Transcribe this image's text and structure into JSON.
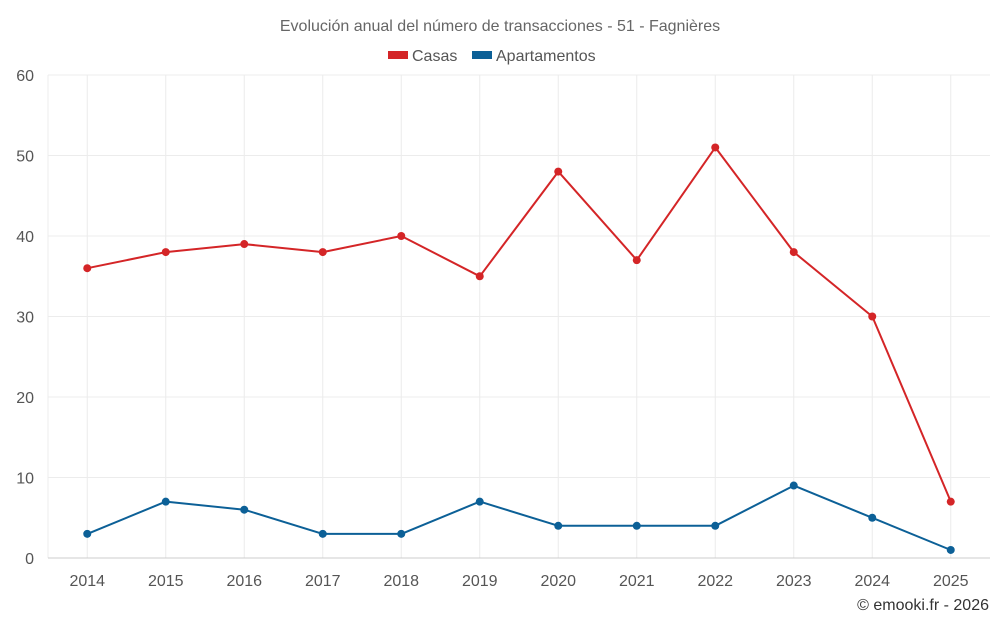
{
  "chart_data": {
    "type": "line",
    "title": "Evolución anual del número de transacciones - 51 - Fagnières",
    "categories": [
      "2014",
      "2015",
      "2016",
      "2017",
      "2018",
      "2019",
      "2020",
      "2021",
      "2022",
      "2023",
      "2024",
      "2025"
    ],
    "series": [
      {
        "name": "Casas",
        "color": "#d42527",
        "values": [
          36,
          38,
          39,
          38,
          40,
          35,
          48,
          37,
          51,
          38,
          30,
          7
        ]
      },
      {
        "name": "Apartamentos",
        "color": "#0c6097",
        "values": [
          3,
          7,
          6,
          3,
          3,
          7,
          4,
          4,
          4,
          9,
          5,
          1
        ]
      }
    ],
    "ylim": [
      0,
      60
    ],
    "yticks": [
      0,
      10,
      20,
      30,
      40,
      50,
      60
    ],
    "xlabel": "",
    "ylabel": "",
    "grid": true,
    "legend_position": "top-center"
  },
  "credit": "© emooki.fr - 2026"
}
